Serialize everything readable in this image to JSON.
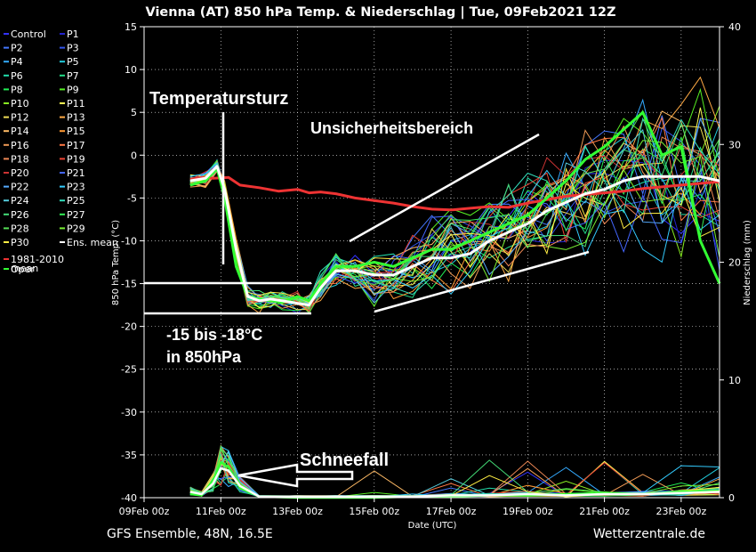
{
  "chart_data": {
    "type": "line",
    "title": "Vienna  (AT)  850 hPa Temp. & Niederschlag | Tue, 09Feb2021 12Z",
    "xlabel": "Date (UTC)",
    "ylabel_left": "850 hPa Temp. (°C)",
    "ylabel_right": "Niederschlag (mm)",
    "x_ticks": [
      "09Feb 00z",
      "11Feb 00z",
      "13Feb 00z",
      "15Feb 00z",
      "17Feb 00z",
      "19Feb 00z",
      "21Feb 00z",
      "23Feb 00z"
    ],
    "x_range_days": [
      0,
      15
    ],
    "y_left_ticks": [
      15,
      10,
      5,
      0,
      -5,
      -10,
      -15,
      -20,
      -25,
      -30,
      -35,
      -40
    ],
    "y_left_range": [
      -40,
      15
    ],
    "y_right_ticks": [
      40,
      30,
      20,
      10,
      0
    ],
    "y_right_range": [
      0,
      40
    ],
    "legend": [
      {
        "name": "Control",
        "color": "#3333ff"
      },
      {
        "name": "P1",
        "color": "#2222cc"
      },
      {
        "name": "P2",
        "color": "#4477ff"
      },
      {
        "name": "P3",
        "color": "#3355ee"
      },
      {
        "name": "P4",
        "color": "#33aaff"
      },
      {
        "name": "P5",
        "color": "#22ccdd"
      },
      {
        "name": "P6",
        "color": "#22ddaa"
      },
      {
        "name": "P7",
        "color": "#22dd88"
      },
      {
        "name": "P8",
        "color": "#22ee55"
      },
      {
        "name": "P9",
        "color": "#55ee22"
      },
      {
        "name": "P10",
        "color": "#88ee22"
      },
      {
        "name": "P11",
        "color": "#ffff55"
      },
      {
        "name": "P12",
        "color": "#eedd55"
      },
      {
        "name": "P13",
        "color": "#ffaa44"
      },
      {
        "name": "P14",
        "color": "#ffbb66"
      },
      {
        "name": "P15",
        "color": "#ff9933"
      },
      {
        "name": "P16",
        "color": "#ee9955"
      },
      {
        "name": "P17",
        "color": "#ff7744"
      },
      {
        "name": "P18",
        "color": "#ee8855"
      },
      {
        "name": "P19",
        "color": "#ee4433"
      },
      {
        "name": "P20",
        "color": "#cc3333"
      },
      {
        "name": "P21",
        "color": "#4466ff"
      },
      {
        "name": "P22",
        "color": "#55aaff"
      },
      {
        "name": "P23",
        "color": "#33ccff"
      },
      {
        "name": "P24",
        "color": "#55ccdd"
      },
      {
        "name": "P25",
        "color": "#33ddbb"
      },
      {
        "name": "P26",
        "color": "#44dd77"
      },
      {
        "name": "P27",
        "color": "#33ee55"
      },
      {
        "name": "P28",
        "color": "#55dd55"
      },
      {
        "name": "P29",
        "color": "#77ee33"
      },
      {
        "name": "P30",
        "color": "#ffee44"
      },
      {
        "name": "Ens. mean",
        "color": "#ffffff"
      },
      {
        "name": "1981-2010 mean",
        "color": "#ee3333"
      },
      {
        "name": "Oper",
        "color": "#33ff33"
      }
    ],
    "series": {
      "ens_mean_temp": {
        "x": [
          1.2,
          1.6,
          1.9,
          2.1,
          2.4,
          2.7,
          3.0,
          3.3,
          3.6,
          4.0,
          4.3,
          4.6,
          5.0,
          5.5,
          6.0,
          6.5,
          7.0,
          7.5,
          8.0,
          8.5,
          9.0,
          9.5,
          10.0,
          10.5,
          11.0,
          11.5,
          12.0,
          12.5,
          13.0,
          13.5,
          14.0,
          14.5,
          15.0
        ],
        "y": [
          -3,
          -2.7,
          -1.3,
          -4,
          -11,
          -16.5,
          -17,
          -16.8,
          -17,
          -17.3,
          -17.5,
          -15.5,
          -13.5,
          -13.5,
          -14,
          -14,
          -13,
          -12,
          -12,
          -11.5,
          -10,
          -9,
          -8,
          -6.5,
          -5.5,
          -4.5,
          -4,
          -3,
          -2.5,
          -2.5,
          -2.5,
          -2.5,
          -3
        ]
      },
      "climate_mean_temp": {
        "x": [
          1.2,
          1.5,
          1.8,
          2.2,
          2.5,
          3.0,
          3.5,
          4.0,
          4.3,
          4.6,
          5.0,
          5.5,
          6.0,
          6.5,
          7.0,
          7.5,
          8.0,
          8.5,
          9.0,
          9.5,
          10.0,
          10.5,
          11.0,
          11.5,
          12.0,
          12.5,
          13.0,
          13.5,
          14.0,
          14.5,
          15.0
        ],
        "y": [
          -2.8,
          -2.6,
          -2.7,
          -2.6,
          -3.5,
          -3.8,
          -4.2,
          -4,
          -4.4,
          -4.3,
          -4.5,
          -5,
          -5.3,
          -5.6,
          -6,
          -6.3,
          -6.4,
          -6.2,
          -6,
          -6.1,
          -5.6,
          -5.2,
          -4.8,
          -4.6,
          -4.4,
          -4.2,
          -3.9,
          -3.7,
          -3.5,
          -3.3,
          -3.1
        ]
      },
      "oper_temp": {
        "x": [
          1.2,
          1.6,
          1.9,
          2.1,
          2.4,
          2.7,
          3.0,
          3.3,
          3.6,
          4.0,
          4.3,
          4.6,
          5.0,
          5.5,
          6.0,
          6.5,
          7.0,
          7.5,
          8.0,
          8.5,
          9.0,
          9.5,
          10.0,
          10.5,
          11.0,
          11.5,
          12.0,
          12.5,
          13.0,
          13.5,
          14.0,
          14.5,
          15.0
        ],
        "y": [
          -3.5,
          -3,
          -1.5,
          -5,
          -13,
          -16.5,
          -16.8,
          -17,
          -17.2,
          -16.5,
          -17,
          -15,
          -13,
          -13,
          -12.5,
          -13,
          -12,
          -11,
          -11,
          -10,
          -9,
          -8,
          -7,
          -5,
          -3,
          -0.5,
          1,
          3,
          5,
          0,
          1,
          -10,
          -15
        ]
      },
      "ens_mean_precip": {
        "x": [
          1.2,
          1.5,
          1.8,
          2.0,
          2.2,
          2.5,
          3.0,
          4.0,
          5.0,
          6.0,
          7.0,
          8.0,
          9.0,
          10.0,
          11.0,
          12.0,
          13.0,
          14.0,
          15.0
        ],
        "y": [
          0.5,
          0.3,
          1.2,
          2.5,
          2.3,
          1,
          0.1,
          0.1,
          0.1,
          0.1,
          0.1,
          0.2,
          0.2,
          0.3,
          0.2,
          0.3,
          0.3,
          0.4,
          0.5
        ]
      },
      "oper_precip": {
        "x": [
          1.2,
          1.5,
          1.8,
          2.0,
          2.2,
          2.5,
          3.0,
          4.0,
          5.0,
          6.0,
          7.0,
          8.0,
          9.0,
          10.0,
          11.0,
          12.0,
          13.0,
          14.0,
          15.0
        ],
        "y": [
          0.3,
          0.2,
          1.5,
          3,
          2.6,
          0.8,
          0.1,
          0,
          0,
          0,
          0.1,
          0.1,
          0.2,
          0.2,
          0.3,
          0.4,
          0.3,
          0.5,
          0.6
        ]
      }
    },
    "annotations": {
      "temperatursturz": "Temperatursturz",
      "unsicherheitsbereich": "Unsicherheitsbereich",
      "range_line1": "-15 bis -18°C",
      "range_line2": "in 850hPa",
      "schneefall": "Schneefall"
    },
    "footer_left": "GFS Ensemble, 48N, 16.5E",
    "footer_right": "Wetterzentrale.de"
  }
}
